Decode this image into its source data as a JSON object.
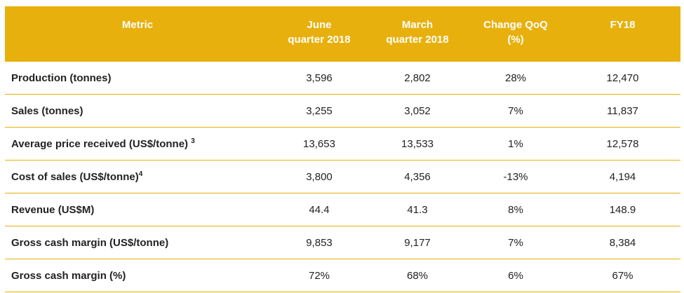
{
  "table": {
    "header": {
      "metric": "Metric",
      "june": "June\nquarter 2018",
      "march": "March\nquarter 2018",
      "change": "Change QoQ\n(%)",
      "fy18": "FY18"
    },
    "rows": [
      {
        "label": "Production (tonnes)",
        "sup": "",
        "june": "3,596",
        "march": "2,802",
        "change": "28%",
        "fy18": "12,470"
      },
      {
        "label": "Sales (tonnes)",
        "sup": "",
        "june": "3,255",
        "march": "3,052",
        "change": "7%",
        "fy18": "11,837"
      },
      {
        "label": "Average price received (US$/tonne)",
        "sup": "3",
        "june": "13,653",
        "march": "13,533",
        "change": "1%",
        "fy18": "12,578"
      },
      {
        "label": "Cost of sales (US$/tonne)",
        "sup": "4",
        "june": "3,800",
        "march": "4,356",
        "change": "-13%",
        "fy18": "4,194"
      },
      {
        "label": "Revenue (US$M)",
        "sup": "",
        "june": "44.4",
        "march": "41.3",
        "change": "8%",
        "fy18": "148.9"
      },
      {
        "label": "Gross cash margin (US$/tonne)",
        "sup": "",
        "june": "9,853",
        "march": "9,177",
        "change": "7%",
        "fy18": "8,384"
      },
      {
        "label": "Gross cash margin (%)",
        "sup": "",
        "june": "72%",
        "march": "68%",
        "change": "6%",
        "fy18": "67%"
      }
    ]
  }
}
